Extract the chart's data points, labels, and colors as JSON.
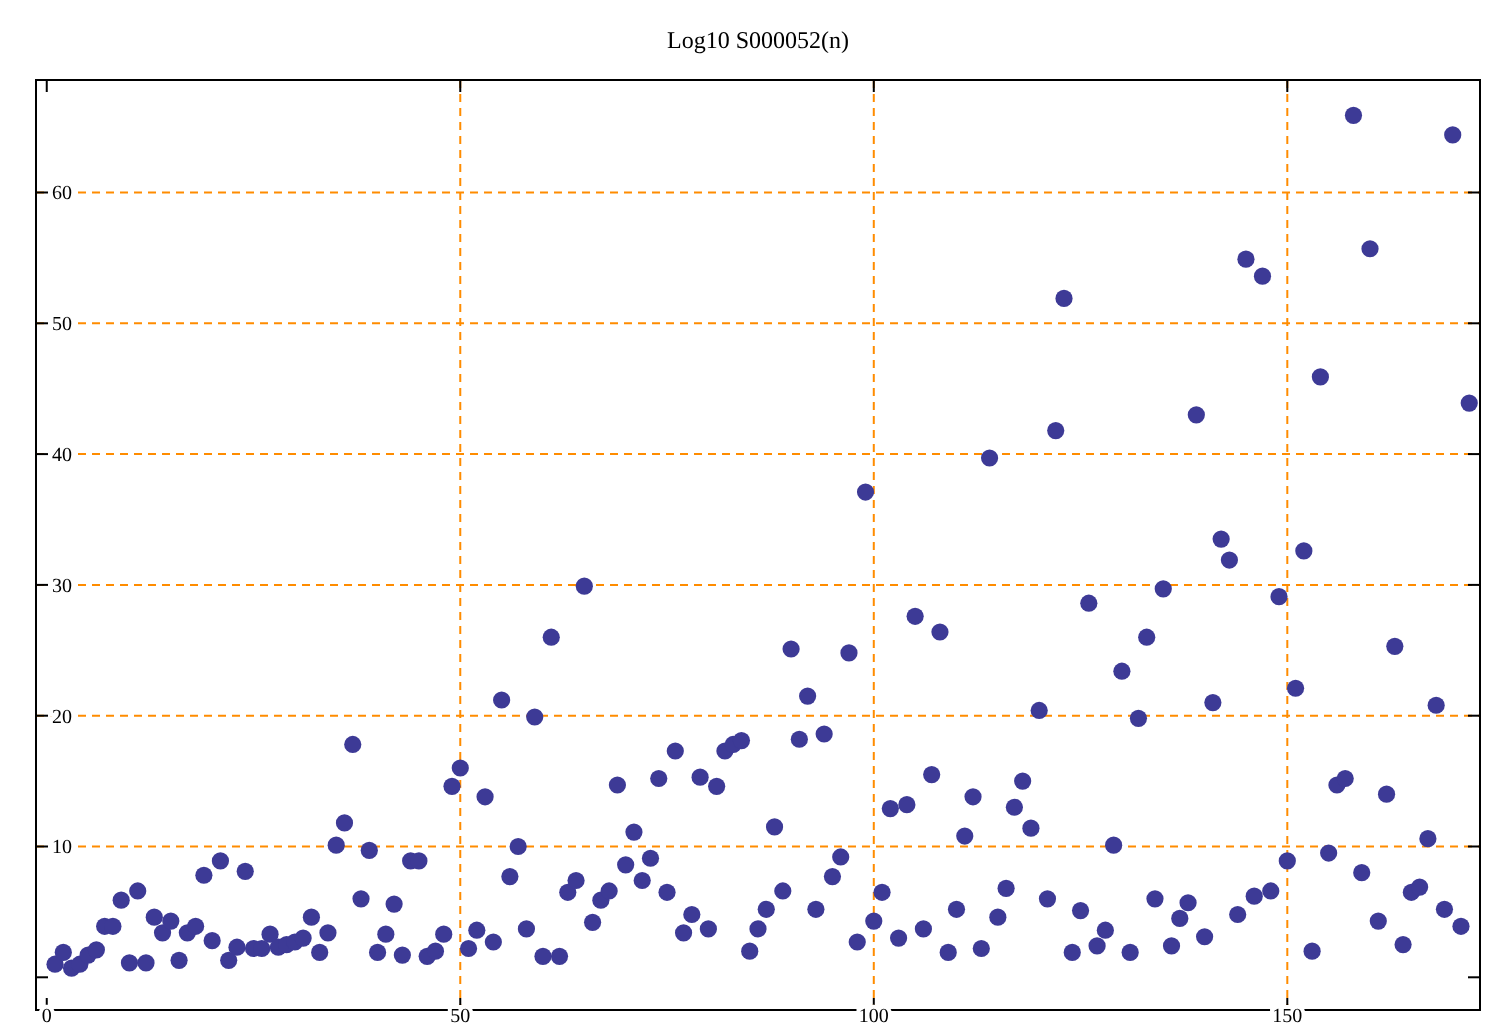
{
  "chart_data": {
    "type": "scatter",
    "title": "Log10 S000052(n)",
    "x": [
      1,
      2,
      3,
      4,
      5,
      6,
      7,
      8,
      9,
      10,
      11,
      12,
      13,
      14,
      15,
      16,
      17,
      18,
      19,
      20,
      21,
      22,
      23,
      24,
      25,
      26,
      27,
      28,
      29,
      30,
      31,
      32,
      33,
      34,
      35,
      36,
      37,
      38,
      39,
      40,
      41,
      42,
      43,
      44,
      45,
      46,
      47,
      48,
      49,
      50,
      51,
      52,
      53,
      54,
      55,
      56,
      57,
      58,
      59,
      60,
      61,
      62,
      63,
      64,
      65,
      66,
      67,
      68,
      69,
      70,
      71,
      72,
      73,
      74,
      75,
      76,
      77,
      78,
      79,
      80,
      81,
      82,
      83,
      84,
      85,
      86,
      87,
      88,
      89,
      90,
      91,
      92,
      93,
      94,
      95,
      96,
      97,
      98,
      99,
      100,
      101,
      102,
      103,
      104,
      105,
      106,
      107,
      108,
      109,
      110,
      111,
      112,
      113,
      114,
      115,
      116,
      117,
      118,
      119,
      120,
      121,
      122,
      123,
      124,
      125,
      126,
      127,
      128,
      129,
      130,
      131,
      132,
      133,
      134,
      135,
      136,
      137,
      138,
      139,
      140,
      141,
      142,
      143,
      144,
      145,
      146,
      147,
      148,
      149,
      150,
      151,
      152,
      153,
      154,
      155,
      156,
      157,
      158,
      159,
      160,
      161,
      162,
      163,
      164,
      165,
      166,
      167,
      168,
      169,
      170,
      171,
      172
    ],
    "series": [
      {
        "color": "#3d3a96",
        "values": [
          1.0,
          1.9,
          0.7,
          1.0,
          1.7,
          2.1,
          3.9,
          3.9,
          5.9,
          1.1,
          6.6,
          1.1,
          4.6,
          3.4,
          4.3,
          1.3,
          3.4,
          3.9,
          7.8,
          2.8,
          8.9,
          1.3,
          2.3,
          8.1,
          2.2,
          2.2,
          3.3,
          2.3,
          2.5,
          2.7,
          3.0,
          4.6,
          1.9,
          3.4,
          10.1,
          11.8,
          17.8,
          6.0,
          9.7,
          1.9,
          3.3,
          5.6,
          1.7,
          8.9,
          8.9,
          1.6,
          2.0,
          3.3,
          14.6,
          16.0,
          2.2,
          3.6,
          13.8,
          2.7,
          21.2,
          7.7,
          10.0,
          3.7,
          19.9,
          1.6,
          26.0,
          1.6,
          6.5,
          7.4,
          29.9,
          4.2,
          5.9,
          6.6,
          14.7,
          8.6,
          11.1,
          7.4,
          9.1,
          15.2,
          6.5,
          17.3,
          3.4,
          4.8,
          15.3,
          3.7,
          14.6,
          17.3,
          17.8,
          18.1,
          2.0,
          3.7,
          5.2,
          11.5,
          6.6,
          25.1,
          18.2,
          21.5,
          5.2,
          18.6,
          7.7,
          9.2,
          24.8,
          2.7,
          37.1,
          4.3,
          6.5,
          12.9,
          3.0,
          13.2,
          27.6,
          3.7,
          15.5,
          26.4,
          1.9,
          5.2,
          10.8,
          13.8,
          2.2,
          39.7,
          4.6,
          6.8,
          13.0,
          15.0,
          11.4,
          20.4,
          6.0,
          41.8,
          51.9,
          1.9,
          5.1,
          28.6,
          2.4,
          3.6,
          10.1,
          23.4,
          1.9,
          19.8,
          26.0,
          6.0,
          29.7,
          2.4,
          4.5,
          5.7,
          43.0,
          3.1,
          21.0,
          33.5,
          31.9,
          4.8,
          54.9,
          6.2,
          53.6,
          6.6,
          29.1,
          8.9,
          22.1,
          32.6,
          2.0,
          45.9,
          9.5,
          14.7,
          15.2,
          65.9,
          8.0,
          55.7,
          4.3,
          14.0,
          25.3,
          2.5,
          6.5,
          6.9,
          10.6,
          20.8,
          5.2,
          64.4,
          3.9,
          43.9
        ]
      }
    ],
    "marker": "circle",
    "xlim": [
      -1.3,
      173.3
    ],
    "ylim": [
      -2.5,
      68.6
    ],
    "xticks": [
      0,
      50,
      100,
      150
    ],
    "yticks": [
      {
        "value": 0,
        "label": null
      },
      10,
      20,
      30,
      40,
      50,
      60
    ],
    "ref_lines": [
      {
        "axis": "x",
        "value": 50,
        "color": "#ff8c00",
        "line_style": "dashed"
      },
      {
        "axis": "x",
        "value": 100,
        "color": "#ff8c00",
        "line_style": "dashed"
      },
      {
        "axis": "x",
        "value": 150,
        "color": "#ff8c00",
        "line_style": "dashed"
      },
      {
        "axis": "y",
        "value": 10,
        "color": "#ff8c00",
        "line_style": "dashed"
      },
      {
        "axis": "y",
        "value": 20,
        "color": "#ff8c00",
        "line_style": "dashed"
      },
      {
        "axis": "y",
        "value": 30,
        "color": "#ff8c00",
        "line_style": "dashed"
      },
      {
        "axis": "y",
        "value": 40,
        "color": "#ff8c00",
        "line_style": "dashed"
      },
      {
        "axis": "y",
        "value": 50,
        "color": "#ff8c00",
        "line_style": "dashed"
      },
      {
        "axis": "y",
        "value": 60,
        "color": "#ff8c00",
        "line_style": "dashed"
      }
    ]
  }
}
